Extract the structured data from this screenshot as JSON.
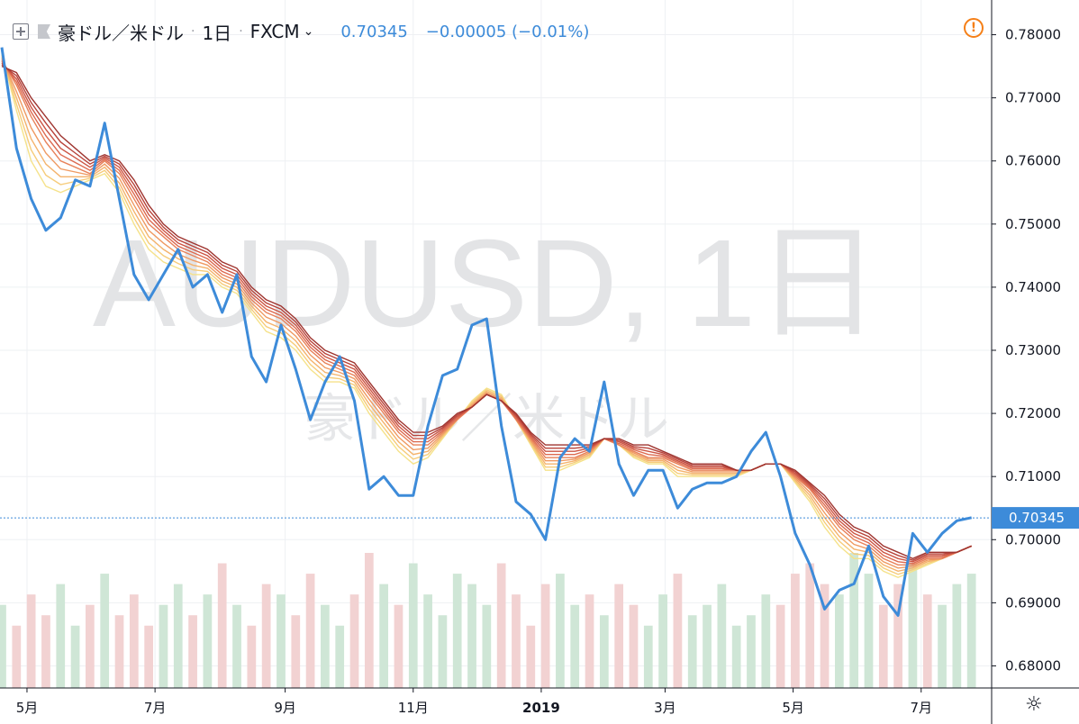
{
  "header": {
    "symbol_name": "豪ドル／米ドル",
    "interval": "1日",
    "exchange": "FXCM",
    "last_price": "0.70345",
    "change": "−0.00005 (−0.01%)"
  },
  "watermark": {
    "line1": "AUDUSD, 1日",
    "line2": "豪ドル／米ドル"
  },
  "icons": {
    "add": "plus-box-icon",
    "flag": "flag-icon",
    "alert": "alert-icon",
    "settings": "gear-icon"
  },
  "colors": {
    "price_line": "#3d8bd9",
    "volume_up": "#cfe6d6",
    "volume_down": "#f2d2d2",
    "ma_ribbon": [
      "#f5e28a",
      "#f6cc7a",
      "#f4b36c",
      "#ef9a62",
      "#e8825a",
      "#dd6a50",
      "#cc5544",
      "#b8433a",
      "#9f3530"
    ]
  },
  "chart_data": {
    "type": "line",
    "title": "",
    "price_axis": {
      "ticks": [
        "0.78000",
        "0.77000",
        "0.76000",
        "0.75000",
        "0.74000",
        "0.73000",
        "0.72000",
        "0.71000",
        "0.70000",
        "0.69000",
        "0.68000"
      ],
      "range": [
        0.6765,
        0.7855
      ],
      "last_label": "0.70345"
    },
    "time_axis": {
      "ticks": [
        "5月",
        "7月",
        "9月",
        "11月",
        "2019",
        "3月",
        "5月",
        "7月"
      ],
      "range": [
        "2018-04-19",
        "2019-07-29"
      ]
    },
    "x": [
      "2018-04-19",
      "2018-04-26",
      "2018-05-03",
      "2018-05-10",
      "2018-05-17",
      "2018-05-24",
      "2018-05-31",
      "2018-06-07",
      "2018-06-14",
      "2018-06-21",
      "2018-06-28",
      "2018-07-05",
      "2018-07-12",
      "2018-07-19",
      "2018-07-26",
      "2018-08-02",
      "2018-08-09",
      "2018-08-16",
      "2018-08-23",
      "2018-08-30",
      "2018-09-06",
      "2018-09-13",
      "2018-09-20",
      "2018-09-27",
      "2018-10-04",
      "2018-10-11",
      "2018-10-18",
      "2018-10-25",
      "2018-11-01",
      "2018-11-08",
      "2018-11-15",
      "2018-11-22",
      "2018-11-29",
      "2018-12-06",
      "2018-12-13",
      "2018-12-20",
      "2018-12-27",
      "2019-01-03",
      "2019-01-10",
      "2019-01-17",
      "2019-01-24",
      "2019-01-31",
      "2019-02-07",
      "2019-02-14",
      "2019-02-21",
      "2019-02-28",
      "2019-03-07",
      "2019-03-14",
      "2019-03-21",
      "2019-03-28",
      "2019-04-04",
      "2019-04-11",
      "2019-04-18",
      "2019-04-25",
      "2019-05-02",
      "2019-05-09",
      "2019-05-16",
      "2019-05-23",
      "2019-05-30",
      "2019-06-06",
      "2019-06-13",
      "2019-06-20",
      "2019-06-27",
      "2019-07-04",
      "2019-07-11",
      "2019-07-18",
      "2019-07-25"
    ],
    "series": [
      {
        "values": [
          0.778,
          0.762,
          0.754,
          0.749,
          0.751,
          0.757,
          0.756,
          0.766,
          0.754,
          0.742,
          0.738,
          0.742,
          0.746,
          0.74,
          0.742,
          0.736,
          0.742,
          0.729,
          0.725,
          0.734,
          0.727,
          0.719,
          0.725,
          0.729,
          0.722,
          0.708,
          0.71,
          0.707,
          0.707,
          0.718,
          0.726,
          0.727,
          0.734,
          0.735,
          0.718,
          0.706,
          0.704,
          0.7,
          0.713,
          0.716,
          0.714,
          0.725,
          0.712,
          0.707,
          0.711,
          0.711,
          0.705,
          0.708,
          0.709,
          0.709,
          0.71,
          0.714,
          0.717,
          0.71,
          0.701,
          0.696,
          0.689,
          0.692,
          0.693,
          0.699,
          0.691,
          0.688,
          0.701,
          0.698,
          0.701,
          0.703,
          0.7035
        ]
      },
      {
        "values": [
          0.777,
          0.768,
          0.76,
          0.756,
          0.755,
          0.756,
          0.757,
          0.758,
          0.755,
          0.75,
          0.746,
          0.744,
          0.743,
          0.742,
          0.742,
          0.74,
          0.739,
          0.736,
          0.733,
          0.732,
          0.73,
          0.727,
          0.725,
          0.725,
          0.724,
          0.72,
          0.717,
          0.714,
          0.712,
          0.713,
          0.716,
          0.719,
          0.722,
          0.724,
          0.723,
          0.719,
          0.715,
          0.711,
          0.711,
          0.712,
          0.713,
          0.716,
          0.715,
          0.713,
          0.712,
          0.712,
          0.71,
          0.71,
          0.71,
          0.71,
          0.71,
          0.711,
          0.712,
          0.712,
          0.709,
          0.706,
          0.702,
          0.699,
          0.697,
          0.697,
          0.695,
          0.694,
          0.695,
          0.696,
          0.697,
          0.698,
          0.699
        ]
      },
      {
        "values": [
          0.776,
          0.772,
          0.767,
          0.763,
          0.76,
          0.759,
          0.758,
          0.76,
          0.758,
          0.754,
          0.75,
          0.748,
          0.746,
          0.745,
          0.744,
          0.742,
          0.741,
          0.738,
          0.736,
          0.735,
          0.733,
          0.73,
          0.728,
          0.727,
          0.726,
          0.723,
          0.72,
          0.717,
          0.715,
          0.715,
          0.717,
          0.719,
          0.721,
          0.723,
          0.722,
          0.719,
          0.716,
          0.713,
          0.713,
          0.713,
          0.714,
          0.716,
          0.715,
          0.714,
          0.713,
          0.713,
          0.712,
          0.711,
          0.711,
          0.711,
          0.711,
          0.711,
          0.712,
          0.712,
          0.71,
          0.708,
          0.705,
          0.702,
          0.7,
          0.699,
          0.697,
          0.696,
          0.696,
          0.697,
          0.697,
          0.698,
          0.699
        ]
      },
      {
        "values": [
          0.775,
          0.774,
          0.77,
          0.767,
          0.764,
          0.762,
          0.76,
          0.761,
          0.76,
          0.757,
          0.753,
          0.75,
          0.748,
          0.747,
          0.746,
          0.744,
          0.743,
          0.74,
          0.738,
          0.737,
          0.735,
          0.732,
          0.73,
          0.729,
          0.728,
          0.725,
          0.722,
          0.719,
          0.717,
          0.717,
          0.718,
          0.72,
          0.721,
          0.723,
          0.722,
          0.72,
          0.717,
          0.715,
          0.715,
          0.715,
          0.715,
          0.716,
          0.716,
          0.715,
          0.715,
          0.714,
          0.713,
          0.712,
          0.712,
          0.712,
          0.711,
          0.711,
          0.712,
          0.712,
          0.711,
          0.709,
          0.707,
          0.704,
          0.702,
          0.701,
          0.699,
          0.698,
          0.697,
          0.698,
          0.698,
          0.698,
          0.699
        ]
      }
    ],
    "volume": [
      8,
      6,
      9,
      7,
      10,
      6,
      8,
      11,
      7,
      9,
      6,
      8,
      10,
      7,
      9,
      12,
      8,
      6,
      10,
      9,
      7,
      11,
      8,
      6,
      9,
      13,
      10,
      8,
      12,
      9,
      7,
      11,
      10,
      8,
      12,
      9,
      6,
      10,
      11,
      8,
      9,
      7,
      10,
      8,
      6,
      9,
      11,
      7,
      8,
      10,
      6,
      7,
      9,
      8,
      11,
      12,
      10,
      9,
      13,
      11,
      8,
      10,
      12,
      9,
      8,
      10,
      11
    ],
    "grid": true,
    "legend": "none"
  }
}
